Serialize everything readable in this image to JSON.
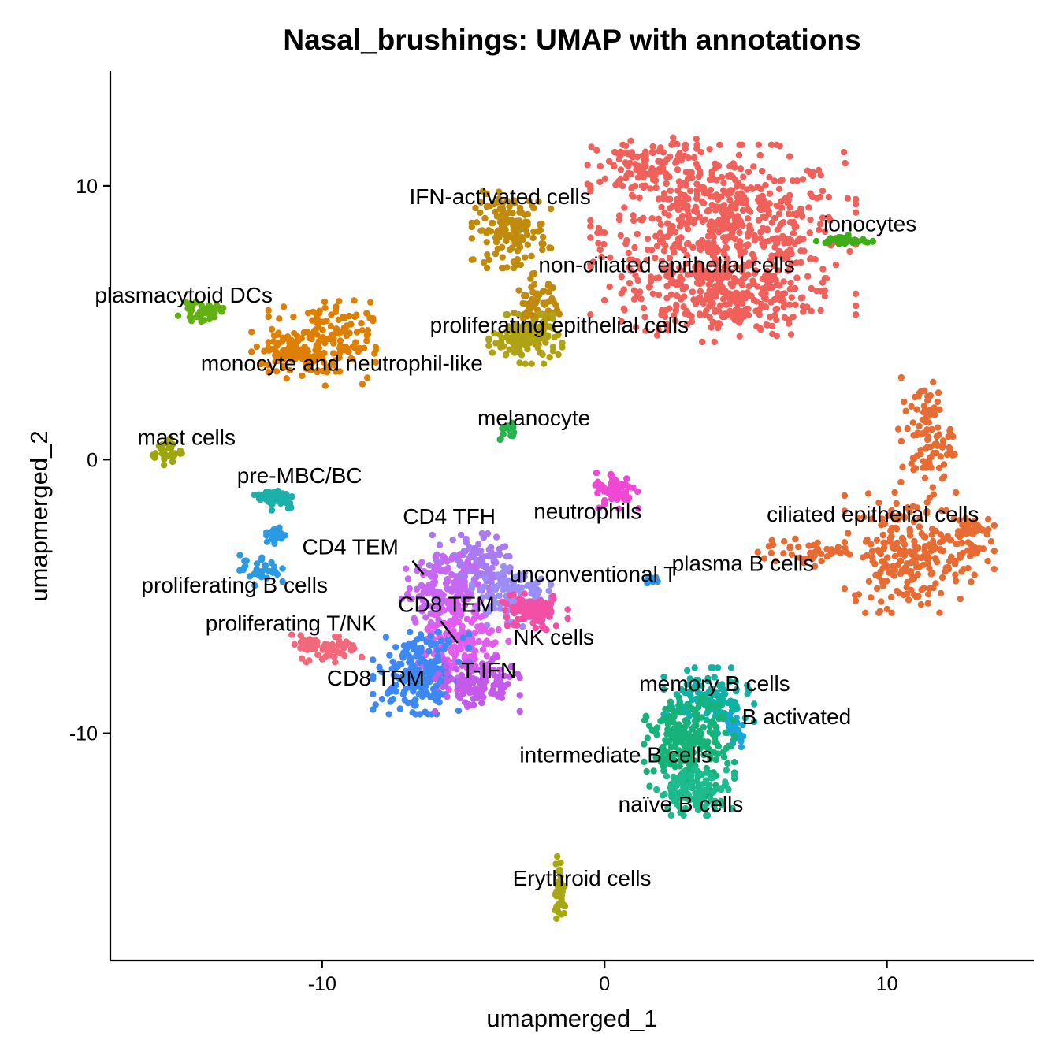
{
  "chart_data": {
    "type": "scatter",
    "title": "Nasal_brushings: UMAP with annotations",
    "xlabel": "umapmerged_1",
    "ylabel": "umapmerged_2",
    "xlim": [
      -17.5,
      15.2
    ],
    "ylim": [
      -18.3,
      14.2
    ],
    "x_ticks": [
      -10,
      0,
      10
    ],
    "x_tick_labels": [
      "-10",
      "0",
      "10"
    ],
    "y_ticks": [
      -10,
      0,
      10
    ],
    "y_tick_labels": [
      "-10",
      "0",
      "10"
    ],
    "grid": false,
    "legend": "none",
    "series": [
      {
        "name": "non-ciliated epithelial cells",
        "color": "#F0615B",
        "label_at": [
          2.2,
          7.1
        ],
        "blobs": [
          [
            4.2,
            8.4,
            4.7,
            3.1
          ],
          [
            4.2,
            5.9,
            3.6,
            1.6
          ],
          [
            1.6,
            10.7,
            2.2,
            1.1
          ]
        ],
        "points": 950
      },
      {
        "name": "IFN-activated cells",
        "color": "#C08A0C",
        "label_at": [
          -3.7,
          9.6
        ],
        "blobs": [
          [
            -3.3,
            8.4,
            1.4,
            1.4
          ],
          [
            -2.4,
            5.5,
            0.8,
            1.3
          ]
        ],
        "points": 230
      },
      {
        "name": "proliferating epithelial cells",
        "color": "#AFA314",
        "label_at": [
          -1.6,
          4.9
        ],
        "blobs": [
          [
            -2.8,
            4.4,
            1.3,
            0.9
          ]
        ],
        "points": 140
      },
      {
        "name": "ionocytes",
        "color": "#3DAE16",
        "label_at": [
          9.4,
          8.6
        ],
        "blobs": [
          [
            8.5,
            8.0,
            1.0,
            0.2
          ]
        ],
        "points": 40
      },
      {
        "name": "plasmacytoid DCs",
        "color": "#62B014",
        "label_at": [
          -14.9,
          6.0
        ],
        "blobs": [
          [
            -14.3,
            5.4,
            0.8,
            0.35
          ]
        ],
        "points": 45
      },
      {
        "name": "monocyte and neutrophil-like",
        "color": "#DD7F03",
        "label_at": [
          -9.3,
          3.5
        ],
        "blobs": [
          [
            -10.0,
            4.3,
            1.9,
            1.6
          ],
          [
            -11.3,
            4.0,
            1.2,
            0.8
          ]
        ],
        "points": 230
      },
      {
        "name": "melanocyte",
        "color": "#27B44A",
        "label_at": [
          -2.5,
          1.5
        ],
        "blobs": [
          [
            -3.4,
            1.0,
            0.3,
            0.4
          ]
        ],
        "points": 12
      },
      {
        "name": "mast cells",
        "color": "#9CA50E",
        "label_at": [
          -14.8,
          0.8
        ],
        "blobs": [
          [
            -15.5,
            0.3,
            0.6,
            0.5
          ]
        ],
        "points": 35
      },
      {
        "name": "pre-MBC/BC",
        "color": "#1BB0AA",
        "label_at": [
          -10.8,
          -0.6
        ],
        "blobs": [
          [
            -11.6,
            -1.4,
            0.8,
            0.45
          ]
        ],
        "points": 45
      },
      {
        "name": "neutrophils",
        "color": "#EE48D5",
        "label_at": [
          -0.6,
          -1.9
        ],
        "blobs": [
          [
            0.4,
            -1.1,
            0.8,
            0.7
          ]
        ],
        "points": 70
      },
      {
        "name": "ciliated epithelial cells",
        "color": "#E76C34",
        "label_at": [
          9.5,
          -2.0
        ],
        "blobs": [
          [
            10.8,
            -3.4,
            2.3,
            2.2
          ],
          [
            11.4,
            0.8,
            1.0,
            2.2
          ],
          [
            7.3,
            -3.4,
            2.0,
            0.5
          ],
          [
            12.8,
            -2.8,
            1.0,
            1.2
          ]
        ],
        "points": 420
      },
      {
        "name": "CD4 TFH",
        "color": "#A87BF0",
        "label_at": [
          -5.5,
          -2.1
        ],
        "blobs": [
          [
            -4.6,
            -3.8,
            1.6,
            1.1
          ]
        ],
        "points": 120
      },
      {
        "name": "proliferating B cells",
        "color": "#2A9BE3",
        "label_at": [
          -13.1,
          -4.6
        ],
        "blobs": [
          [
            -12.2,
            -4.0,
            0.8,
            0.6
          ],
          [
            -11.7,
            -2.6,
            0.4,
            0.8
          ]
        ],
        "points": 55
      },
      {
        "name": "CD4 TEM",
        "color": "#C967F5",
        "label_at": [
          -9.0,
          -3.2
        ],
        "blobs": [
          [
            -5.6,
            -4.8,
            1.6,
            1.3
          ]
        ],
        "points": 150
      },
      {
        "name": "unconventional T",
        "color": "#9B8EF7",
        "label_at": [
          -0.4,
          -4.2
        ],
        "blobs": [
          [
            -3.3,
            -5.0,
            1.4,
            1.1
          ]
        ],
        "points": 120
      },
      {
        "name": "plasma B cells",
        "color": "#2B94E8",
        "label_at": [
          4.9,
          -3.8
        ],
        "blobs": [
          [
            1.7,
            -4.4,
            0.3,
            0.2
          ]
        ],
        "points": 10
      },
      {
        "name": "proliferating T/NK",
        "color": "#F3687A",
        "label_at": [
          -11.1,
          -6.0
        ],
        "blobs": [
          [
            -9.9,
            -6.9,
            1.3,
            0.5
          ]
        ],
        "points": 60
      },
      {
        "name": "CD8 TEM",
        "color": "#E35CF0",
        "label_at": [
          -5.6,
          -5.3
        ],
        "blobs": [
          [
            -5.0,
            -6.8,
            1.6,
            1.6
          ]
        ],
        "points": 150
      },
      {
        "name": "NK cells",
        "color": "#F34FA5",
        "label_at": [
          -1.8,
          -6.5
        ],
        "blobs": [
          [
            -2.6,
            -5.6,
            1.3,
            0.7
          ]
        ],
        "points": 90
      },
      {
        "name": "CD8 TRM",
        "color": "#3D88F2",
        "label_at": [
          -8.1,
          -8.0
        ],
        "blobs": [
          [
            -6.5,
            -7.8,
            1.7,
            1.5
          ]
        ],
        "points": 220
      },
      {
        "name": "T-IFN",
        "color": "#C45BE8",
        "label_at": [
          -4.1,
          -7.7
        ],
        "blobs": [
          [
            -4.5,
            -8.2,
            1.5,
            1.0
          ]
        ],
        "points": 120
      },
      {
        "name": "memory B cells",
        "color": "#11B2A4",
        "label_at": [
          3.9,
          -8.2
        ],
        "blobs": [
          [
            3.7,
            -8.8,
            1.6,
            1.2
          ]
        ],
        "points": 130
      },
      {
        "name": "B activated",
        "color": "#1AA6D6",
        "label_at": [
          6.8,
          -9.4
        ],
        "blobs": [
          [
            4.6,
            -9.9,
            0.4,
            0.8
          ]
        ],
        "points": 30
      },
      {
        "name": "intermediate B cells",
        "color": "#16B27A",
        "label_at": [
          0.4,
          -10.8
        ],
        "blobs": [
          [
            3.0,
            -10.5,
            1.6,
            1.8
          ]
        ],
        "points": 240
      },
      {
        "name": "naïve B cells",
        "color": "#1DBB8E",
        "label_at": [
          2.7,
          -12.6
        ],
        "blobs": [
          [
            3.2,
            -12.1,
            1.4,
            0.9
          ]
        ],
        "points": 120
      },
      {
        "name": "Erythroid cells",
        "color": "#A7A613",
        "label_at": [
          -0.8,
          -15.3
        ],
        "blobs": [
          [
            -1.6,
            -15.8,
            0.2,
            1.3
          ]
        ],
        "points": 40
      }
    ],
    "label_segments": [
      {
        "from": [
          -6.8,
          -3.7
        ],
        "to": [
          -6.4,
          -4.2
        ]
      },
      {
        "from": [
          -5.8,
          -5.9
        ],
        "to": [
          -5.2,
          -6.7
        ]
      }
    ]
  }
}
